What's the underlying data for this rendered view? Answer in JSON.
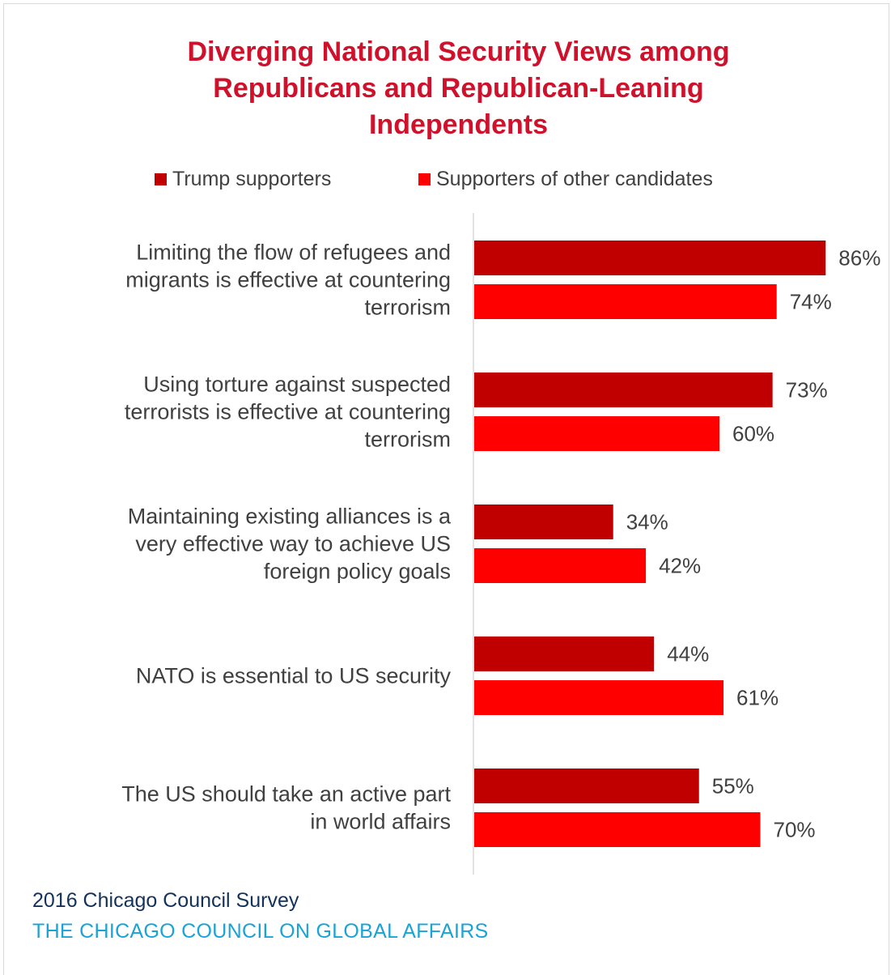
{
  "chart_data": {
    "type": "bar",
    "orientation": "horizontal",
    "title": "Diverging National Security Views among\nRepublicans and Republican-Leaning\nIndependents",
    "legend_position": "top",
    "categories": [
      [
        "Limiting the flow of refugees and",
        "migrants is effective at countering",
        "terrorism"
      ],
      [
        "Using torture against suspected",
        "terrorists is effective at countering",
        "terrorism"
      ],
      [
        "Maintaining existing alliances is a",
        "very effective way to achieve US",
        "foreign policy goals"
      ],
      [
        "NATO is essential to US security"
      ],
      [
        "The US should take an active part",
        "in world affairs"
      ]
    ],
    "series": [
      {
        "name": "Trump supporters",
        "color": "#c00000",
        "values": [
          86,
          73,
          34,
          44,
          55
        ]
      },
      {
        "name": "Supporters of other candidates",
        "color": "#ff0000",
        "values": [
          74,
          60,
          42,
          61,
          70
        ]
      }
    ],
    "value_suffix": "%",
    "xlim": [
      0,
      100
    ],
    "grid": false
  },
  "footer": {
    "survey": "2016 Chicago Council Survey",
    "org": "THE CHICAGO COUNCIL ON GLOBAL AFFAIRS"
  }
}
